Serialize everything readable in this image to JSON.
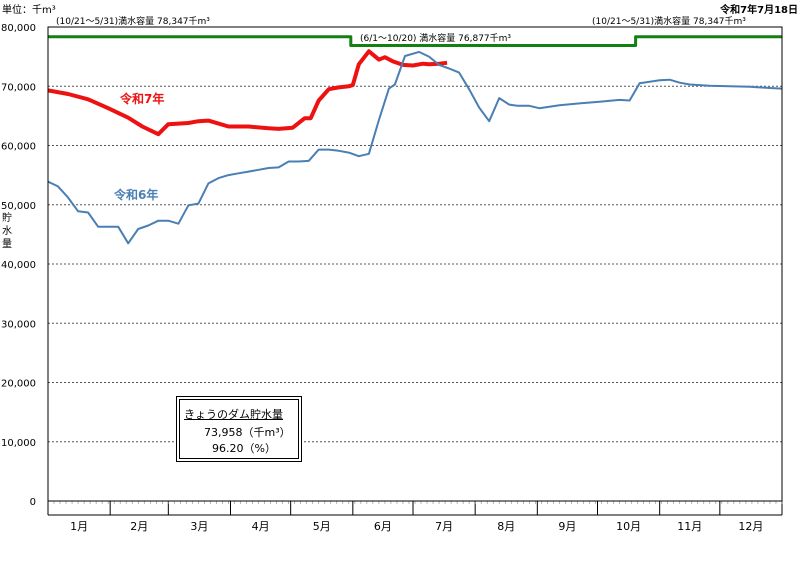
{
  "header": {
    "unit": "単位：千m³",
    "date": "令和7年7月18日"
  },
  "captions": {
    "left": "(10/21～5/31)満水容量 78,347千m³",
    "right": "(10/21～5/31)満水容量 78,347千m³",
    "mid": "(6/1～10/20) 満水容量 76,877千m³"
  },
  "ylabel": "貯水量",
  "box": {
    "title": "きょうのダム貯水量",
    "line1": "73,958（千m³）",
    "line2": "96.20（%）"
  },
  "colors": {
    "r7": "#ee1111",
    "r6": "#4a7fb3",
    "capacity": "#138013",
    "grid": "#555555"
  },
  "chart_data": {
    "type": "line",
    "xlabel": "",
    "ylabel": "貯水量",
    "ylim": [
      0,
      80000
    ],
    "xlim": [
      0,
      366
    ],
    "yticks": [
      0,
      10000,
      20000,
      30000,
      40000,
      50000,
      60000,
      70000,
      80000
    ],
    "ytick_labels": [
      "0",
      "10,000",
      "20,000",
      "30,000",
      "40,000",
      "50,000",
      "60,000",
      "70,000",
      "80,000"
    ],
    "month_labels": [
      "1月",
      "2月",
      "3月",
      "4月",
      "5月",
      "6月",
      "7月",
      "8月",
      "9月",
      "10月",
      "11月",
      "12月"
    ],
    "month_starts": [
      0,
      31,
      60,
      91,
      121,
      152,
      182,
      213,
      244,
      274,
      305,
      335
    ],
    "grid": "horizontal dashed",
    "series": [
      {
        "name": "令和7年",
        "color": "#ee1111",
        "x": [
          0,
          10,
          20,
          30,
          40,
          47,
          55,
          60,
          70,
          75,
          80,
          90,
          100,
          110,
          115,
          122,
          128,
          131,
          135,
          140,
          145,
          150,
          152,
          155,
          160,
          165,
          168,
          172,
          177,
          182,
          187,
          190,
          195,
          199
        ],
        "y": [
          69300,
          68700,
          67800,
          66300,
          64700,
          63200,
          61900,
          63600,
          63800,
          64100,
          64200,
          63200,
          63200,
          62900,
          62800,
          63000,
          64600,
          64600,
          67600,
          69500,
          69800,
          70000,
          70200,
          73700,
          75900,
          74500,
          74900,
          74200,
          73600,
          73500,
          73800,
          73700,
          73800,
          73958
        ]
      },
      {
        "name": "令和6年",
        "color": "#4a7fb3",
        "x": [
          0,
          5,
          10,
          15,
          20,
          25,
          35,
          40,
          45,
          50,
          55,
          60,
          65,
          70,
          75,
          80,
          85,
          90,
          95,
          100,
          105,
          110,
          115,
          120,
          125,
          130,
          135,
          140,
          145,
          150,
          155,
          160,
          165,
          170,
          173,
          178,
          185,
          190,
          195,
          200,
          205,
          210,
          215,
          220,
          225,
          230,
          234,
          236,
          240,
          245,
          255,
          265,
          275,
          285,
          290,
          295,
          305,
          310,
          315,
          320,
          330,
          340,
          350,
          360,
          366
        ],
        "y": [
          53900,
          53100,
          51200,
          48900,
          48700,
          46300,
          46300,
          43500,
          45900,
          46500,
          47300,
          47300,
          46800,
          49900,
          50200,
          53600,
          54500,
          55000,
          55300,
          55600,
          55900,
          56200,
          56300,
          57300,
          57300,
          57400,
          59300,
          59300,
          59100,
          58800,
          58200,
          58600,
          64300,
          69600,
          70300,
          75100,
          75800,
          75000,
          73600,
          73000,
          72300,
          69500,
          66400,
          64100,
          68000,
          66900,
          66700,
          66700,
          66700,
          66300,
          66800,
          67100,
          67400,
          67700,
          67600,
          70500,
          71000,
          71100,
          70600,
          70300,
          70100,
          70000,
          69900,
          69700,
          69600
        ]
      },
      {
        "name": "",
        "color": "#138013",
        "step": true,
        "x": [
          0,
          151,
          151,
          293,
          293,
          366
        ],
        "y": [
          78347,
          78347,
          76877,
          76877,
          78347,
          78347
        ]
      }
    ]
  }
}
